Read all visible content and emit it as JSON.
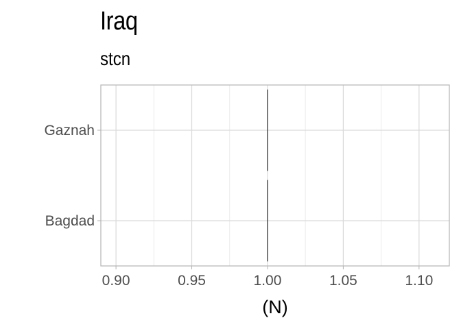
{
  "chart_data": {
    "type": "bar",
    "title": "Iraq",
    "subtitle": "stcn",
    "xlabel": "(N)",
    "ylabel": "",
    "orientation": "horizontal",
    "categories": [
      "Gaznah",
      "Bagdad"
    ],
    "values": [
      1,
      1
    ],
    "xlim": [
      0.89,
      1.12
    ],
    "xticks": [
      0.9,
      0.95,
      1.0,
      1.05,
      1.1
    ],
    "xtick_labels": [
      "0.90",
      "0.95",
      "1.00",
      "1.05",
      "1.10"
    ],
    "grid": true,
    "legend": "none",
    "colors": {
      "bar_outline": "#000000",
      "grid_major": "#d9d9d9",
      "grid_minor": "#ebebeb",
      "panel_border": "#b3b3b3",
      "tick_label": "#4d4d4d"
    }
  }
}
